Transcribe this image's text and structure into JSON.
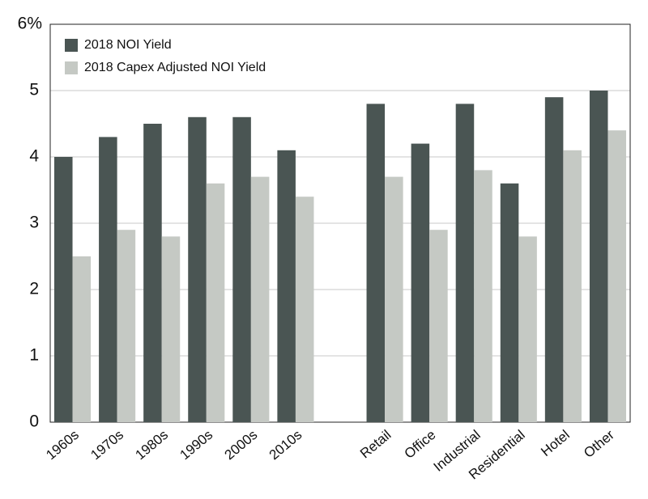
{
  "chart_data": {
    "type": "bar",
    "categories": [
      "1960s",
      "1970s",
      "1980s",
      "1990s",
      "2000s",
      "2010s",
      null,
      "Retail",
      "Office",
      "Industrial",
      "Residential",
      "Hotel",
      "Other"
    ],
    "series": [
      {
        "name": "2018 NOI Yield",
        "color": "#4a5553",
        "values": [
          4.0,
          4.3,
          4.5,
          4.6,
          4.6,
          4.1,
          null,
          4.8,
          4.2,
          4.8,
          3.6,
          4.9,
          5.0
        ]
      },
      {
        "name": "2018 Capex Adjusted NOI Yield",
        "color": "#c5c9c4",
        "values": [
          2.5,
          2.9,
          2.8,
          3.6,
          3.7,
          3.4,
          null,
          3.7,
          2.9,
          3.8,
          2.8,
          4.1,
          4.4
        ]
      }
    ],
    "ylim": [
      0,
      6
    ],
    "yticks": [
      0,
      1,
      2,
      3,
      4,
      5,
      {
        "value": 6,
        "label": "6%"
      }
    ],
    "grid": true,
    "legend": "upper-left"
  }
}
